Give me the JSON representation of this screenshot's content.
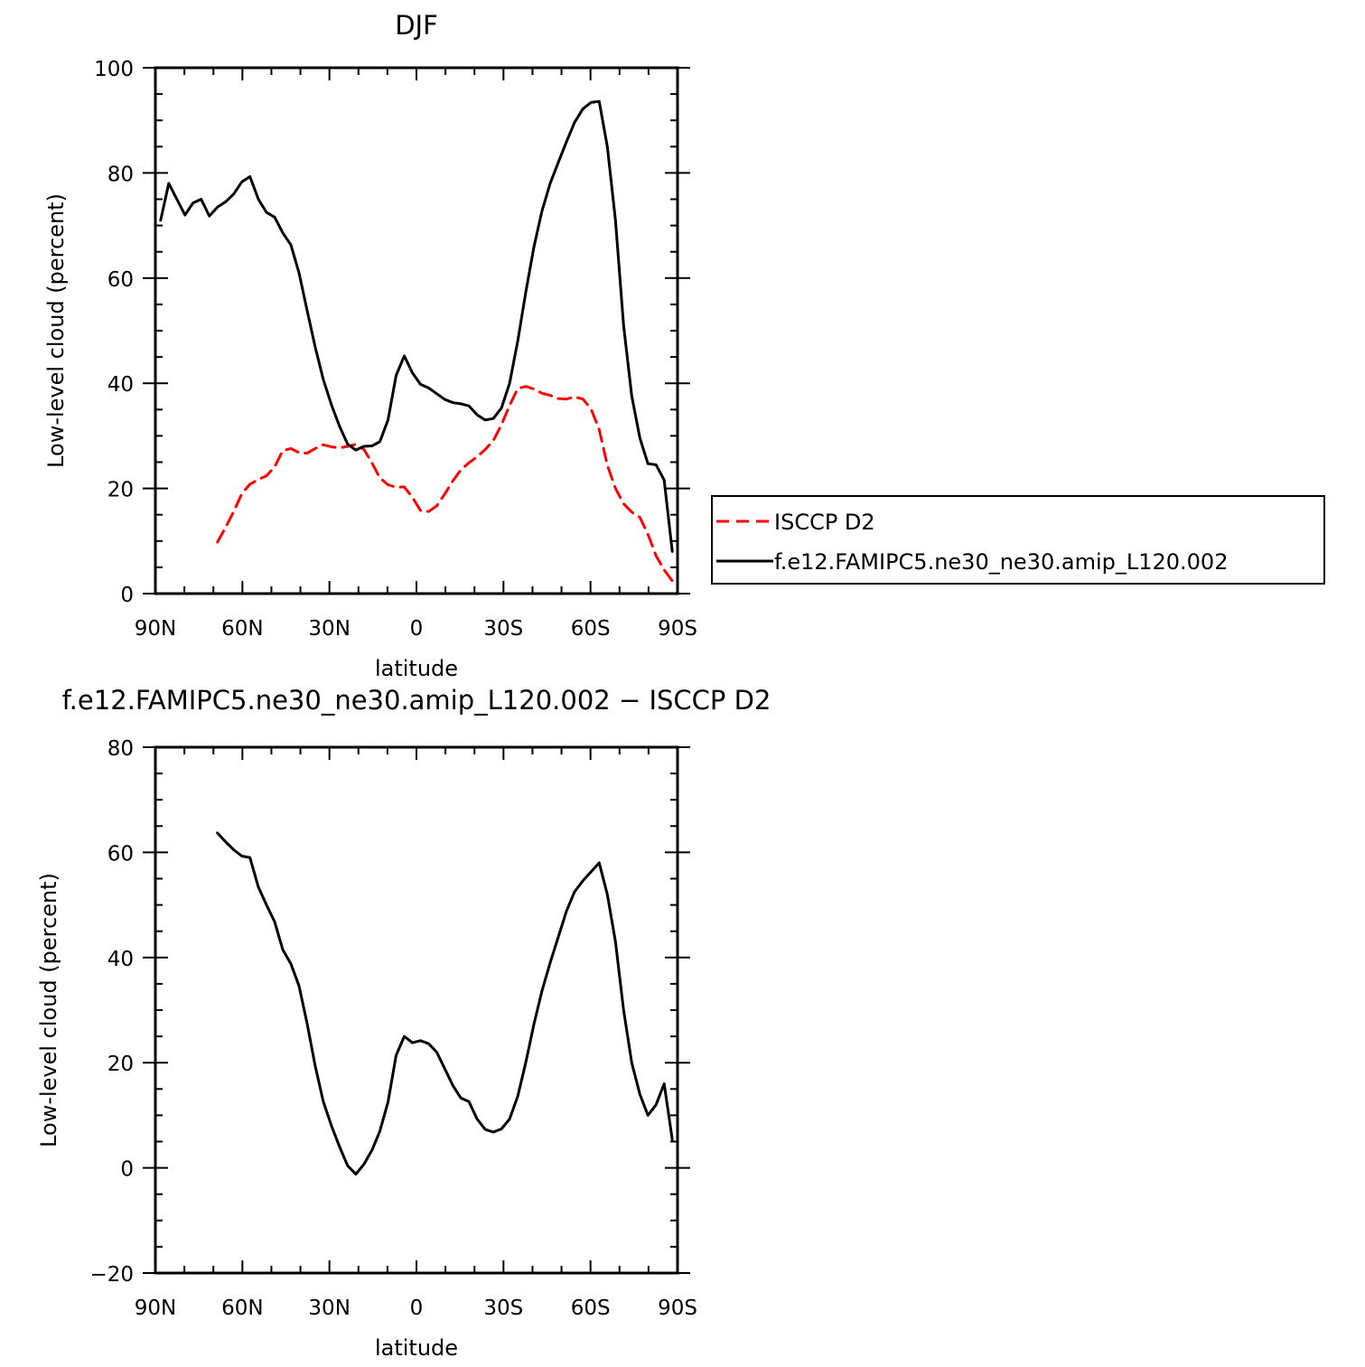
{
  "chart_data": [
    {
      "type": "line",
      "title": "DJF",
      "xlabel": "latitude",
      "ylabel": "Low-level cloud (percent)",
      "xlim": [
        90,
        -90
      ],
      "ylim": [
        0,
        100
      ],
      "x_ticks": [
        {
          "value": 90,
          "label": "90N"
        },
        {
          "value": 60,
          "label": "60N"
        },
        {
          "value": 30,
          "label": "30N"
        },
        {
          "value": 0,
          "label": "0"
        },
        {
          "value": -30,
          "label": "30S"
        },
        {
          "value": -60,
          "label": "60S"
        },
        {
          "value": -90,
          "label": "90S"
        }
      ],
      "y_ticks": [
        {
          "value": 0,
          "label": "0"
        },
        {
          "value": 20,
          "label": "20"
        },
        {
          "value": 40,
          "label": "40"
        },
        {
          "value": 60,
          "label": "60"
        },
        {
          "value": 80,
          "label": "80"
        },
        {
          "value": 100,
          "label": "100"
        }
      ],
      "legend_position": "right",
      "series": [
        {
          "name": "ISCCP D2",
          "color": "#ff0000",
          "dash": "dashed",
          "x": [
            68.6,
            65.8,
            63.0,
            60.2,
            57.4,
            54.5,
            51.7,
            48.9,
            46.1,
            43.3,
            40.5,
            37.7,
            34.9,
            32.1,
            29.3,
            26.5,
            23.7,
            20.9,
            18.1,
            15.3,
            12.6,
            9.8,
            7.0,
            4.2,
            1.4,
            -1.4,
            -4.2,
            -7.0,
            -9.8,
            -12.6,
            -15.3,
            -18.1,
            -20.9,
            -23.7,
            -26.5,
            -29.3,
            -32.1,
            -34.9,
            -37.7,
            -40.5,
            -43.3,
            -46.1,
            -48.9,
            -51.7,
            -54.5,
            -57.4,
            -60.2,
            -63.0,
            -65.8,
            -68.6,
            -71.4,
            -74.2,
            -77.0,
            -79.8,
            -82.6,
            -85.4,
            -88.2
          ],
          "y": [
            9.8,
            12.6,
            15.6,
            19.0,
            20.8,
            21.7,
            22.4,
            24.1,
            27.2,
            27.6,
            26.8,
            26.7,
            27.6,
            28.3,
            27.9,
            27.7,
            28.0,
            28.4,
            27.4,
            24.8,
            22.0,
            20.7,
            20.2,
            20.3,
            18.3,
            15.8,
            15.6,
            16.7,
            19.0,
            21.5,
            23.5,
            24.9,
            26.0,
            27.4,
            29.1,
            32.1,
            35.8,
            39.0,
            39.4,
            38.9,
            38.1,
            37.7,
            37.1,
            37.0,
            37.4,
            37.0,
            35.1,
            31.2,
            24.4,
            20.0,
            17.1,
            15.5,
            14.5,
            11.3,
            7.2,
            4.5,
            2.4
          ]
        },
        {
          "name": "f.e12.FAMIPC5.ne30_ne30.amip_L120.002",
          "color": "#000000",
          "dash": "solid",
          "x": [
            88.2,
            85.4,
            82.6,
            79.8,
            77.0,
            74.2,
            71.4,
            68.6,
            65.8,
            63.0,
            60.2,
            57.4,
            54.5,
            51.7,
            48.9,
            46.1,
            43.3,
            40.5,
            37.7,
            34.9,
            32.1,
            29.3,
            26.5,
            23.7,
            20.9,
            18.1,
            15.3,
            12.6,
            9.8,
            7.0,
            4.2,
            1.4,
            -1.4,
            -4.2,
            -7.0,
            -9.8,
            -12.6,
            -15.3,
            -18.1,
            -20.9,
            -23.7,
            -26.5,
            -29.3,
            -32.1,
            -34.9,
            -37.7,
            -40.5,
            -43.3,
            -46.1,
            -48.9,
            -51.7,
            -54.5,
            -57.4,
            -60.2,
            -63.0,
            -65.8,
            -68.6,
            -71.4,
            -74.2,
            -77.0,
            -79.8,
            -82.6,
            -85.4,
            -88.2
          ],
          "y": [
            71.0,
            78.0,
            75.0,
            72.0,
            74.3,
            75.0,
            71.8,
            73.5,
            74.5,
            76.0,
            78.3,
            79.3,
            75.0,
            72.5,
            71.6,
            68.6,
            66.3,
            61.0,
            53.9,
            46.9,
            40.7,
            35.9,
            31.8,
            28.4,
            27.3,
            28.0,
            28.1,
            28.9,
            33.0,
            41.5,
            45.2,
            42.0,
            39.8,
            39.1,
            38.0,
            36.9,
            36.3,
            36.1,
            35.7,
            34.0,
            33.0,
            33.3,
            35.3,
            40.0,
            48.0,
            57.4,
            65.9,
            72.8,
            78.0,
            82.0,
            85.9,
            89.6,
            92.2,
            93.4,
            93.6,
            85.0,
            71.0,
            51.0,
            37.6,
            29.6,
            24.7,
            24.5,
            21.6,
            8.0
          ]
        }
      ]
    },
    {
      "type": "line",
      "title": "f.e12.FAMIPC5.ne30_ne30.amip_L120.002 − ISCCP D2",
      "xlabel": "latitude",
      "ylabel": "Low-level cloud (percent)",
      "xlim": [
        90,
        -90
      ],
      "ylim": [
        -20,
        80
      ],
      "x_ticks": [
        {
          "value": 90,
          "label": "90N"
        },
        {
          "value": 60,
          "label": "60N"
        },
        {
          "value": 30,
          "label": "30N"
        },
        {
          "value": 0,
          "label": "0"
        },
        {
          "value": -30,
          "label": "30S"
        },
        {
          "value": -60,
          "label": "60S"
        },
        {
          "value": -90,
          "label": "90S"
        }
      ],
      "y_ticks": [
        {
          "value": -20,
          "label": "−20"
        },
        {
          "value": 0,
          "label": "0"
        },
        {
          "value": 20,
          "label": "20"
        },
        {
          "value": 40,
          "label": "40"
        },
        {
          "value": 60,
          "label": "60"
        },
        {
          "value": 80,
          "label": "80"
        }
      ],
      "series": [
        {
          "color": "#000000",
          "dash": "solid",
          "x": [
            68.6,
            65.8,
            63.0,
            60.2,
            57.4,
            54.5,
            51.7,
            48.9,
            46.1,
            43.3,
            40.5,
            37.7,
            34.9,
            32.1,
            29.3,
            26.5,
            23.7,
            20.9,
            18.1,
            15.3,
            12.6,
            9.8,
            7.0,
            4.2,
            1.4,
            -1.4,
            -4.2,
            -7.0,
            -9.8,
            -12.6,
            -15.3,
            -18.1,
            -20.9,
            -23.7,
            -26.5,
            -29.3,
            -32.1,
            -34.9,
            -37.7,
            -40.5,
            -43.3,
            -46.1,
            -48.9,
            -51.7,
            -54.5,
            -57.4,
            -60.2,
            -63.0,
            -65.8,
            -68.6,
            -71.4,
            -74.2,
            -77.0,
            -79.8,
            -82.6,
            -85.4,
            -88.2
          ],
          "y": [
            63.7,
            62.0,
            60.5,
            59.3,
            59.0,
            53.4,
            50.0,
            46.8,
            41.5,
            38.8,
            34.6,
            27.5,
            19.4,
            12.6,
            8.0,
            4.0,
            0.4,
            -1.2,
            0.7,
            3.4,
            7.0,
            12.5,
            21.4,
            25.0,
            23.8,
            24.2,
            23.6,
            22.0,
            18.8,
            15.6,
            13.3,
            12.6,
            9.3,
            7.3,
            6.8,
            7.4,
            9.3,
            13.6,
            20.1,
            27.3,
            33.7,
            39.0,
            43.9,
            48.8,
            52.5,
            54.6,
            56.3,
            58.0,
            52.0,
            43.0,
            30.0,
            20.0,
            14.0,
            10.0,
            12.0,
            16.0,
            5.4
          ]
        }
      ]
    }
  ]
}
